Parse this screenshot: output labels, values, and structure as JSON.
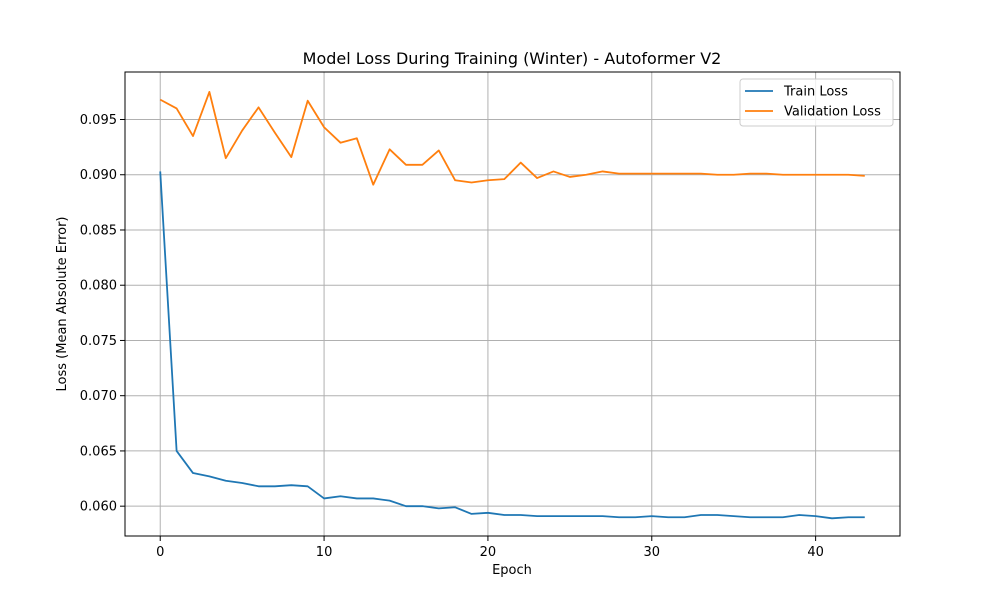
{
  "chart_data": {
    "type": "line",
    "title": "Model Loss During Training (Winter) - Autoformer V2",
    "xlabel": "Epoch",
    "ylabel": "Loss (Mean Absolute Error)",
    "xlim": [
      -2.15,
      45.15
    ],
    "ylim": [
      0.0573,
      0.0993
    ],
    "xticks": [
      0,
      10,
      20,
      30,
      40
    ],
    "yticks": [
      0.06,
      0.065,
      0.07,
      0.075,
      0.08,
      0.085,
      0.09,
      0.095
    ],
    "xtick_labels": [
      "0",
      "10",
      "20",
      "30",
      "40"
    ],
    "ytick_labels": [
      "0.060",
      "0.065",
      "0.070",
      "0.075",
      "0.080",
      "0.085",
      "0.090",
      "0.095"
    ],
    "grid": true,
    "legend_position": "top-right",
    "x": [
      0,
      1,
      2,
      3,
      4,
      5,
      6,
      7,
      8,
      9,
      10,
      11,
      12,
      13,
      14,
      15,
      16,
      17,
      18,
      19,
      20,
      21,
      22,
      23,
      24,
      25,
      26,
      27,
      28,
      29,
      30,
      31,
      32,
      33,
      34,
      35,
      36,
      37,
      38,
      39,
      40,
      41,
      42,
      43
    ],
    "series": [
      {
        "name": "Train Loss",
        "color": "#1f77b4",
        "values": [
          0.0903,
          0.065,
          0.063,
          0.0627,
          0.0623,
          0.0621,
          0.0618,
          0.0618,
          0.0619,
          0.0618,
          0.0607,
          0.0609,
          0.0607,
          0.0607,
          0.0605,
          0.06,
          0.06,
          0.0598,
          0.0599,
          0.0593,
          0.0594,
          0.0592,
          0.0592,
          0.0591,
          0.0591,
          0.0591,
          0.0591,
          0.0591,
          0.059,
          0.059,
          0.0591,
          0.059,
          0.059,
          0.0592,
          0.0592,
          0.0591,
          0.059,
          0.059,
          0.059,
          0.0592,
          0.0591,
          0.0589,
          0.059,
          0.059
        ]
      },
      {
        "name": "Validation Loss",
        "color": "#ff7f0e",
        "values": [
          0.0968,
          0.096,
          0.0935,
          0.0975,
          0.0915,
          0.094,
          0.0961,
          0.0938,
          0.0916,
          0.0967,
          0.0943,
          0.0929,
          0.0933,
          0.0891,
          0.0923,
          0.0909,
          0.0909,
          0.0922,
          0.0895,
          0.0893,
          0.0895,
          0.0896,
          0.0911,
          0.0897,
          0.0903,
          0.0898,
          0.09,
          0.0903,
          0.0901,
          0.0901,
          0.0901,
          0.0901,
          0.0901,
          0.0901,
          0.09,
          0.09,
          0.0901,
          0.0901,
          0.09,
          0.09,
          0.09,
          0.09,
          0.09,
          0.0899
        ]
      }
    ]
  }
}
